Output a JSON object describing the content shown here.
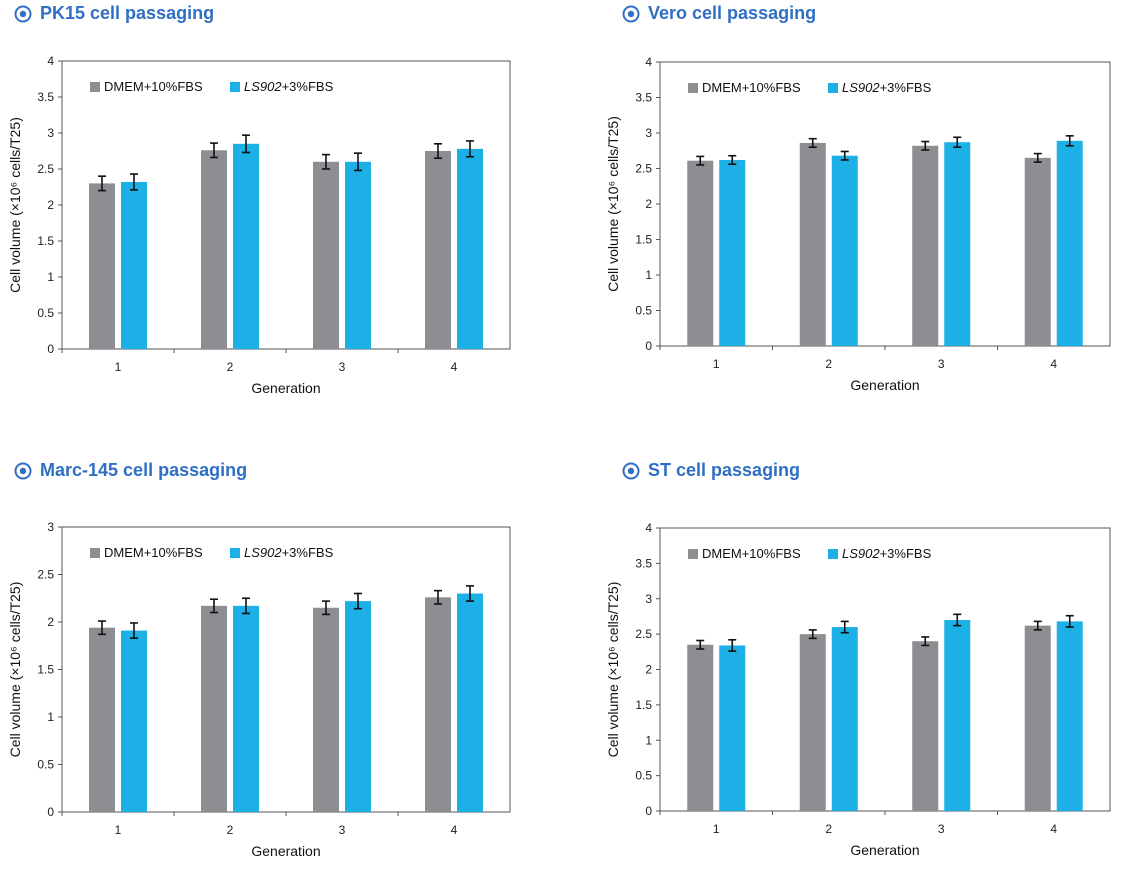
{
  "colors": {
    "title": "#2f6fc4",
    "series_dmem": "#8c8e91",
    "series_ls": "#1cb0e6",
    "axis": "#333333"
  },
  "chart_data": [
    {
      "type": "bar",
      "title": "PK15 cell passaging",
      "categories": [
        "1",
        "2",
        "3",
        "4"
      ],
      "xlabel": "Generation",
      "ylabel": "Cell volume (×10⁶ cells/T25)",
      "ylim": [
        0,
        4
      ],
      "yticks": [
        "0",
        "0.5",
        "1",
        "1.5",
        "2",
        "2.5",
        "3",
        "3.5",
        "4"
      ],
      "legend_position": "top-left",
      "series": [
        {
          "name": "DMEM+10%FBS",
          "values": [
            2.3,
            2.76,
            2.6,
            2.75
          ],
          "errors": [
            0.1,
            0.1,
            0.1,
            0.1
          ]
        },
        {
          "name_italic": "LS902",
          "name_rest": "+3%FBS",
          "values": [
            2.32,
            2.85,
            2.6,
            2.78
          ],
          "errors": [
            0.11,
            0.12,
            0.12,
            0.11
          ]
        }
      ]
    },
    {
      "type": "bar",
      "title": "Vero cell passaging",
      "categories": [
        "1",
        "2",
        "3",
        "4"
      ],
      "xlabel": "Generation",
      "ylabel": "Cell volume (×10⁶ cells/T25)",
      "ylim": [
        0,
        4
      ],
      "yticks": [
        "0",
        "0.5",
        "1",
        "1.5",
        "2",
        "2.5",
        "3",
        "3.5",
        "4"
      ],
      "legend_position": "top-left",
      "series": [
        {
          "name": "DMEM+10%FBS",
          "values": [
            2.61,
            2.86,
            2.82,
            2.65
          ],
          "errors": [
            0.06,
            0.06,
            0.06,
            0.06
          ]
        },
        {
          "name_italic": "LS902",
          "name_rest": "+3%FBS",
          "values": [
            2.62,
            2.68,
            2.87,
            2.89
          ],
          "errors": [
            0.06,
            0.06,
            0.07,
            0.07
          ]
        }
      ]
    },
    {
      "type": "bar",
      "title": "Marc-145 cell passaging",
      "categories": [
        "1",
        "2",
        "3",
        "4"
      ],
      "xlabel": "Generation",
      "ylabel": "Cell volume (×10⁶ cells/T25)",
      "ylim": [
        0,
        3
      ],
      "yticks": [
        "0",
        "0.5",
        "1",
        "1.5",
        "2",
        "2.5",
        "3"
      ],
      "legend_position": "top-left",
      "series": [
        {
          "name": "DMEM+10%FBS",
          "values": [
            1.94,
            2.17,
            2.15,
            2.26
          ],
          "errors": [
            0.07,
            0.07,
            0.07,
            0.07
          ]
        },
        {
          "name_italic": "LS902",
          "name_rest": "+3%FBS",
          "values": [
            1.91,
            2.17,
            2.22,
            2.3
          ],
          "errors": [
            0.08,
            0.08,
            0.08,
            0.08
          ]
        }
      ]
    },
    {
      "type": "bar",
      "title": "ST cell passaging",
      "categories": [
        "1",
        "2",
        "3",
        "4"
      ],
      "xlabel": "Generation",
      "ylabel": "Cell volume (×10⁶ cells/T25)",
      "ylim": [
        0,
        4
      ],
      "yticks": [
        "0",
        "0.5",
        "1",
        "1.5",
        "2",
        "2.5",
        "3",
        "3.5",
        "4"
      ],
      "legend_position": "top-left",
      "series": [
        {
          "name": "DMEM+10%FBS",
          "values": [
            2.35,
            2.5,
            2.4,
            2.62
          ],
          "errors": [
            0.06,
            0.06,
            0.06,
            0.06
          ]
        },
        {
          "name_italic": "LS902",
          "name_rest": "+3%FBS",
          "values": [
            2.34,
            2.6,
            2.7,
            2.68
          ],
          "errors": [
            0.08,
            0.08,
            0.08,
            0.08
          ]
        }
      ]
    }
  ]
}
